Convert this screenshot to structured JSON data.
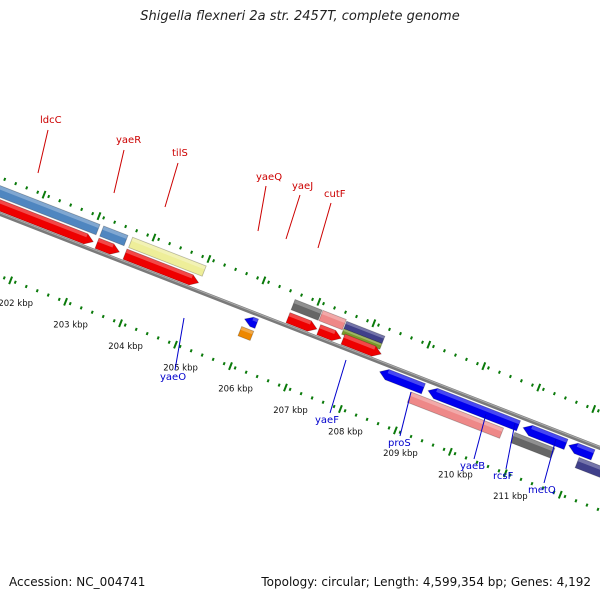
{
  "title": "Shigella flexneri 2a str. 2457T, complete genome",
  "footer": {
    "accession": "Accession: NC_004741",
    "topology": "Topology: circular; Length: 4,599,354 bp; Genes: 4,192"
  },
  "colors": {
    "backbone": "#7a7a7a",
    "tick_green": "#0a7a0a",
    "label_top": "#cc0000",
    "label_bottom": "#0000cc",
    "cds_red": "#ee0000",
    "cds_blue": "#0000ee",
    "steelblue": "#4f86c0",
    "khaki": "#eeee99",
    "darkgray": "#666666",
    "pink": "#ee8888",
    "slateblue": "#40408a",
    "olive": "#7a9a2a",
    "orange": "#ee8800"
  },
  "scale_labels": [
    "202 kbp",
    "203 kbp",
    "204 kbp",
    "205 kbp",
    "206 kbp",
    "207 kbp",
    "208 kbp",
    "209 kbp",
    "210 kbp",
    "211 kbp"
  ],
  "genes_top": [
    "ldcC",
    "yaeR",
    "tilS",
    "yaeQ",
    "yaeJ",
    "cutF"
  ],
  "genes_bottom": [
    "yaeO",
    "yaeF",
    "proS",
    "yaeB",
    "rcsF",
    "metQ"
  ]
}
